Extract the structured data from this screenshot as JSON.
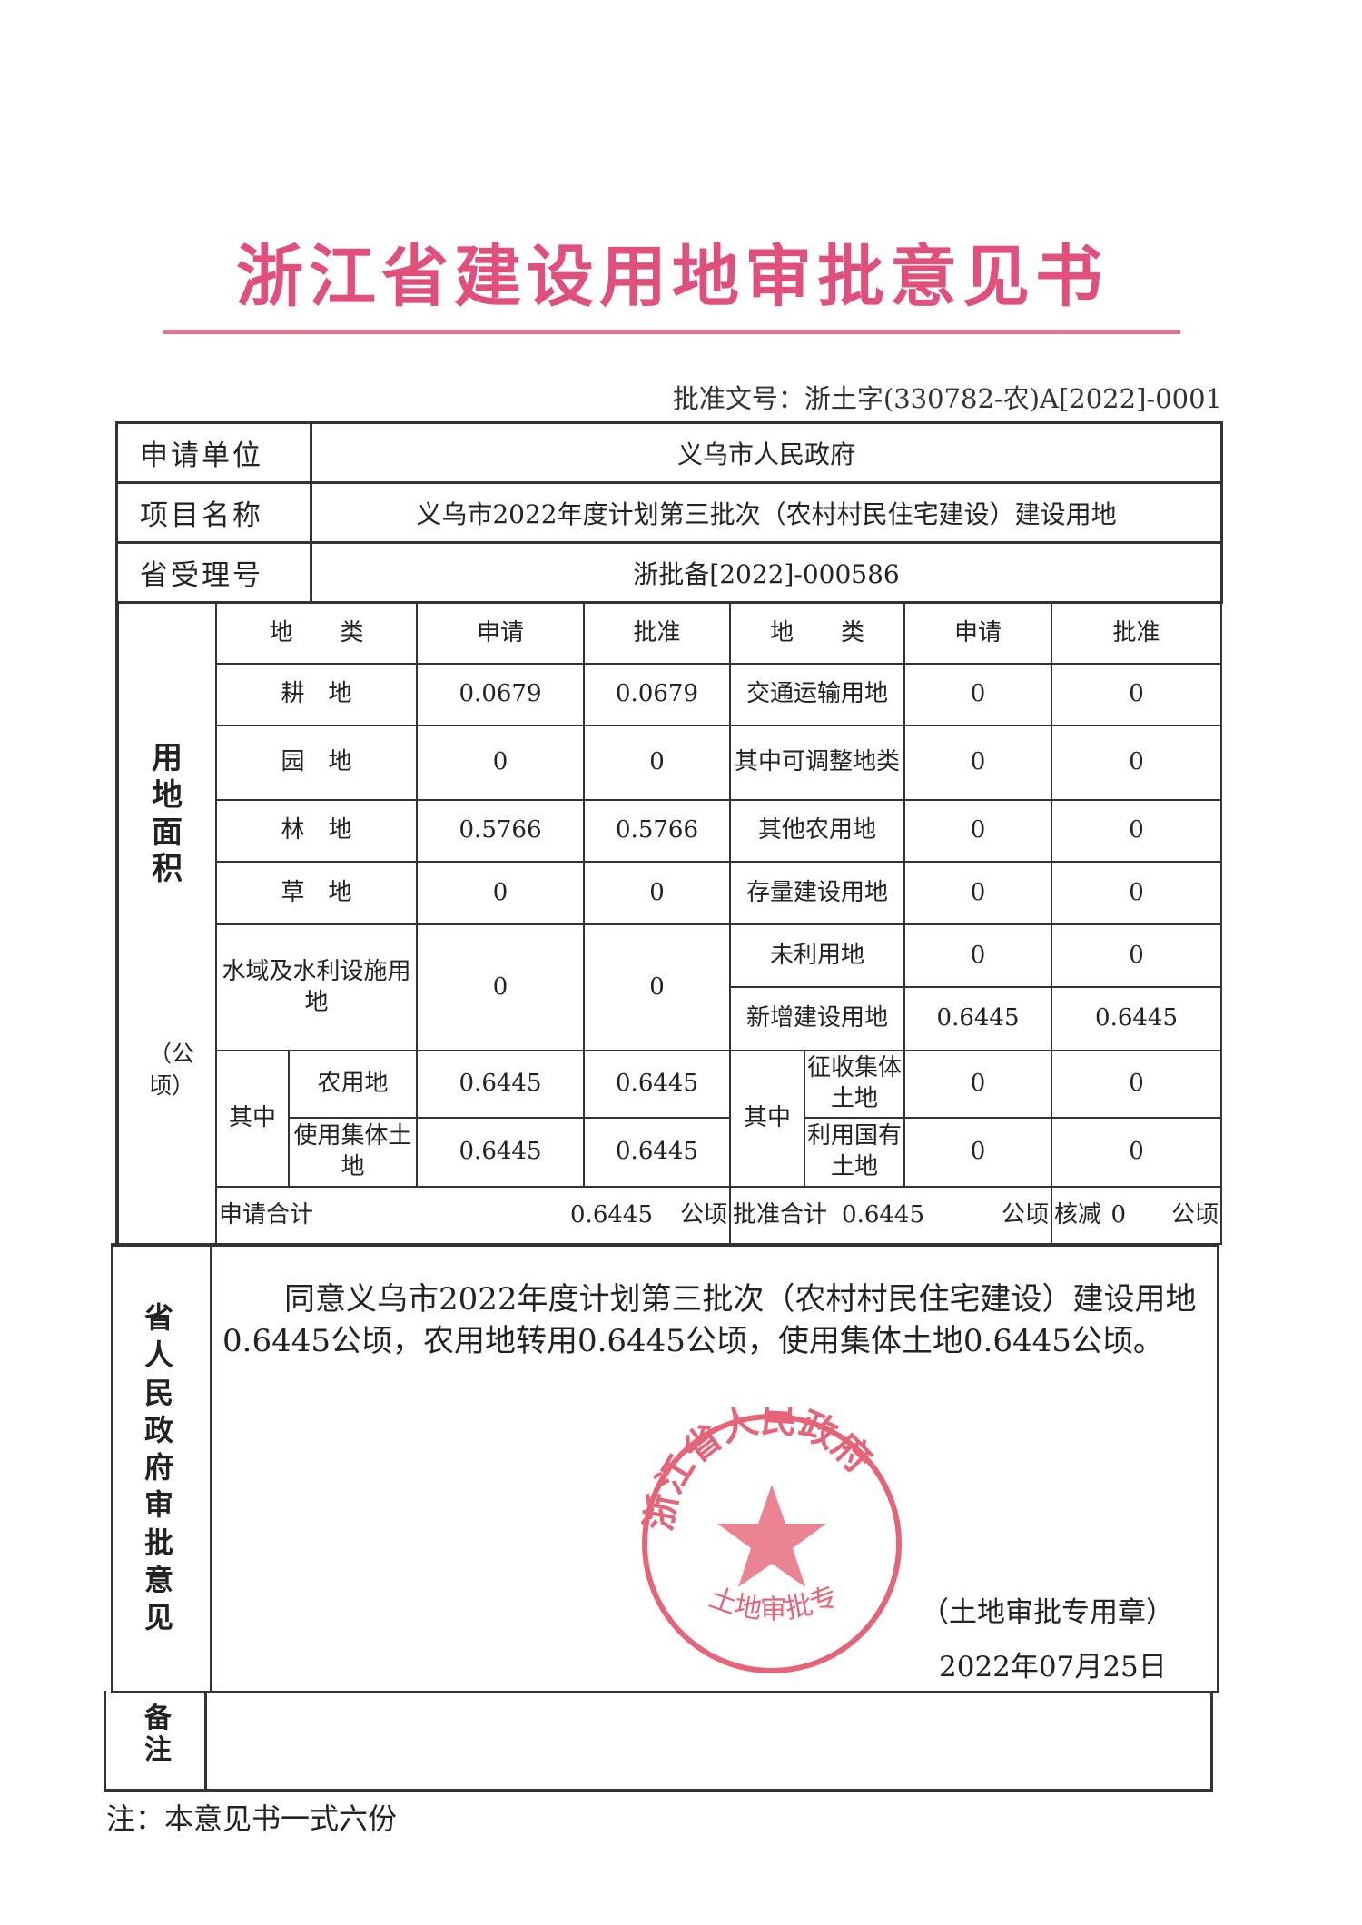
{
  "title": "浙江省建设用地审批意见书",
  "approval_doc_no": "批准文号：浙土字(330782-农)A[2022]-0001",
  "header_rows": [
    {
      "label": "申请单位",
      "value": "义乌市人民政府"
    },
    {
      "label": "项目名称",
      "value": "义乌市2022年度计划第三批次（农村村民住宅建设）建设用地"
    },
    {
      "label": "省受理号",
      "value": "浙批备[2022]-000586"
    }
  ],
  "land_area": {
    "section_label": "用地面积",
    "unit_label": "（公顷）",
    "headers": {
      "land_type": "地　　类",
      "applied": "申请",
      "approved": "批准"
    },
    "left_rows": [
      {
        "type": "耕　地",
        "applied": "0.0679",
        "approved": "0.0679"
      },
      {
        "type": "园　地",
        "applied": "0",
        "approved": "0"
      },
      {
        "type": "林　地",
        "applied": "0.5766",
        "approved": "0.5766"
      },
      {
        "type": "草　地",
        "applied": "0",
        "approved": "0"
      },
      {
        "type": "水域及水利设施用地",
        "applied": "0",
        "approved": "0"
      }
    ],
    "right_rows": [
      {
        "type": "交通运输用地",
        "applied": "0",
        "approved": "0"
      },
      {
        "type": "其中可调整地类",
        "applied": "0",
        "approved": "0"
      },
      {
        "type": "其他农用地",
        "applied": "0",
        "approved": "0"
      },
      {
        "type": "存量建设用地",
        "applied": "0",
        "approved": "0"
      },
      {
        "type": "未利用地",
        "applied": "0",
        "approved": "0"
      },
      {
        "type": "新增建设用地",
        "applied": "0.6445",
        "approved": "0.6445"
      }
    ],
    "of_which_label": "其中",
    "left_sub": [
      {
        "type": "农用地",
        "applied": "0.6445",
        "approved": "0.6445"
      },
      {
        "type": "使用集体土地",
        "applied": "0.6445",
        "approved": "0.6445"
      }
    ],
    "right_sub": [
      {
        "type": "征收集体土地",
        "applied": "0",
        "approved": "0"
      },
      {
        "type": "利用国有土地",
        "applied": "0",
        "approved": "0"
      }
    ],
    "totals": {
      "applied_label": "申请合计",
      "applied_value": "0.6445",
      "approved_label": "批准合计",
      "approved_value": "0.6445",
      "reduced_label": "核减",
      "reduced_value": "0",
      "unit": "公顷"
    }
  },
  "opinion": {
    "label": "省人民政府审批意见",
    "text": "同意义乌市2022年度计划第三批次（农村村民住宅建设）建设用地0.6445公顷，农用地转用0.6445公顷，使用集体土地0.6445公顷。",
    "seal_label": "（土地审批专用章）",
    "date": "2022年07月25日"
  },
  "stamp": {
    "top_text": "浙江省人民政府",
    "bottom_text": "土地审批专用章",
    "color": "#e0304a"
  },
  "remarks_label": "备注",
  "footnote": "注：本意见书一式六份",
  "colors": {
    "title": "#e0507a",
    "rule": "#e47393"
  }
}
